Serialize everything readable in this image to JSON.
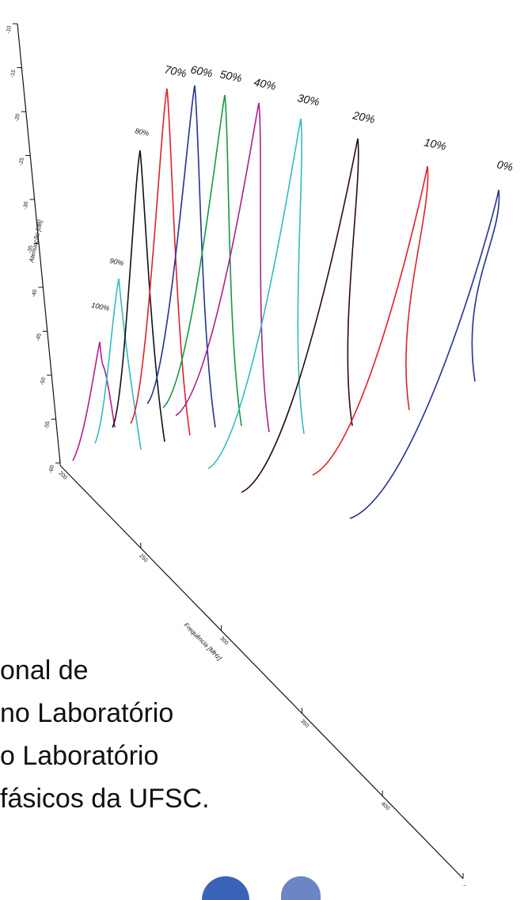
{
  "chart_data": {
    "type": "line",
    "projection": "3d",
    "x_axis": {
      "label": "Frequência [MHz]",
      "ticks": [
        "200",
        "250",
        "300",
        "350",
        "400",
        "450"
      ],
      "range": [
        200,
        450
      ]
    },
    "y_axis": {
      "label": "Atenuação [dB]",
      "ticks": [
        "-10",
        "-15",
        "-20",
        "-25",
        "-30",
        "-35",
        "-40",
        "-45",
        "-50",
        "-55",
        "-60"
      ],
      "range": [
        -60,
        -10
      ]
    },
    "series": [
      {
        "name": "100%",
        "peak_frequency": 215,
        "peak_attenuation": -45,
        "color": "#b0208c"
      },
      {
        "name": "90%",
        "peak_frequency": 222,
        "peak_attenuation": -35,
        "color": "#33bbbb"
      },
      {
        "name": "80%",
        "peak_frequency": 228,
        "peak_attenuation": -21,
        "color": "#111111"
      },
      {
        "name": "70%",
        "peak_frequency": 230,
        "peak_attenuation": -10,
        "color": "#e0202a"
      },
      {
        "name": "60%",
        "peak_frequency": 232,
        "peak_attenuation": -10,
        "color": "#26328f"
      },
      {
        "name": "50%",
        "peak_frequency": 235,
        "peak_attenuation": -12,
        "color": "#129944"
      },
      {
        "name": "40%",
        "peak_frequency": 238,
        "peak_attenuation": -14,
        "color": "#b0208c"
      },
      {
        "name": "30%",
        "peak_frequency": 241,
        "peak_attenuation": -18,
        "color": "#33bbbb"
      },
      {
        "name": "20%",
        "peak_frequency": 245,
        "peak_attenuation": -22,
        "color": "#2a0c0c"
      },
      {
        "name": "10%",
        "peak_frequency": 249,
        "peak_attenuation": -25,
        "color": "#e0202a"
      },
      {
        "name": "0%",
        "peak_frequency": 252,
        "peak_attenuation": -28,
        "color": "#26328f"
      }
    ]
  },
  "caption_lines": [
    "onal de",
    " no Laboratório",
    " o Laboratório",
    "fásicos da UFSC."
  ]
}
